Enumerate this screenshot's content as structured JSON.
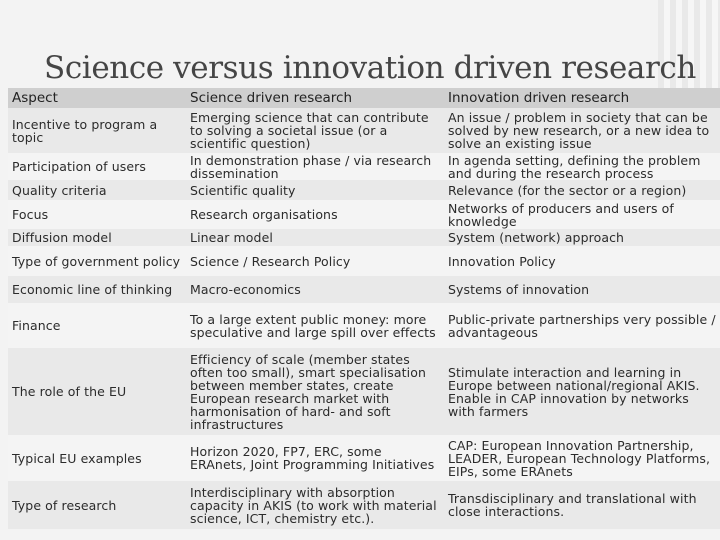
{
  "title": "Science versus innovation driven research",
  "headers": {
    "aspect": "Aspect",
    "science": "Science driven research",
    "innovation": "Innovation driven research"
  },
  "rows": [
    {
      "aspect": "Incentive to program a topic",
      "science": "Emerging science that can contribute to solving a societal issue (or a scientific question)",
      "innovation": "An issue / problem in society that can be solved by new research, or a new idea to solve an existing issue"
    },
    {
      "aspect": "Participation of users",
      "science": "In demonstration phase / via research dissemination",
      "innovation": "In agenda setting, defining the problem and during the research process"
    },
    {
      "aspect": "Quality criteria",
      "science": "Scientific quality",
      "innovation": "Relevance (for the sector or a region)"
    },
    {
      "aspect": "Focus",
      "science": "Research organisations",
      "innovation": "Networks of producers and users of knowledge"
    },
    {
      "aspect": "Diffusion model",
      "science": "Linear model",
      "innovation": "System (network) approach"
    },
    {
      "aspect": "Type of government policy",
      "science": "Science / Research Policy",
      "innovation": "Innovation Policy"
    },
    {
      "aspect": "Economic line of thinking",
      "science": "Macro-economics",
      "innovation": "Systems of innovation"
    },
    {
      "aspect": "Finance",
      "science": "To a large extent public money: more speculative and large spill over effects",
      "innovation": "Public-private partnerships very possible / advantageous"
    },
    {
      "aspect": "The role of the EU",
      "science": "Efficiency of scale (member states often too small), smart specialisation between member states, create European research market with harmonisation of hard- and soft infrastructures",
      "innovation": "Stimulate interaction and learning in Europe between national/regional AKIS. Enable in CAP innovation by networks with farmers"
    },
    {
      "aspect": "Typical EU examples",
      "science": "Horizon 2020, FP7, ERC, some ERAnets, Joint Programming Initiatives",
      "innovation": "CAP: European Innovation Partnership, LEADER, European Technology Platforms, EIPs, some ERAnets"
    },
    {
      "aspect": "Type of research",
      "science": "Interdisciplinary with absorption capacity in AKIS (to work with material science, ICT, chemistry etc.).",
      "innovation": "Transdisciplinary and translational with close interactions."
    }
  ]
}
